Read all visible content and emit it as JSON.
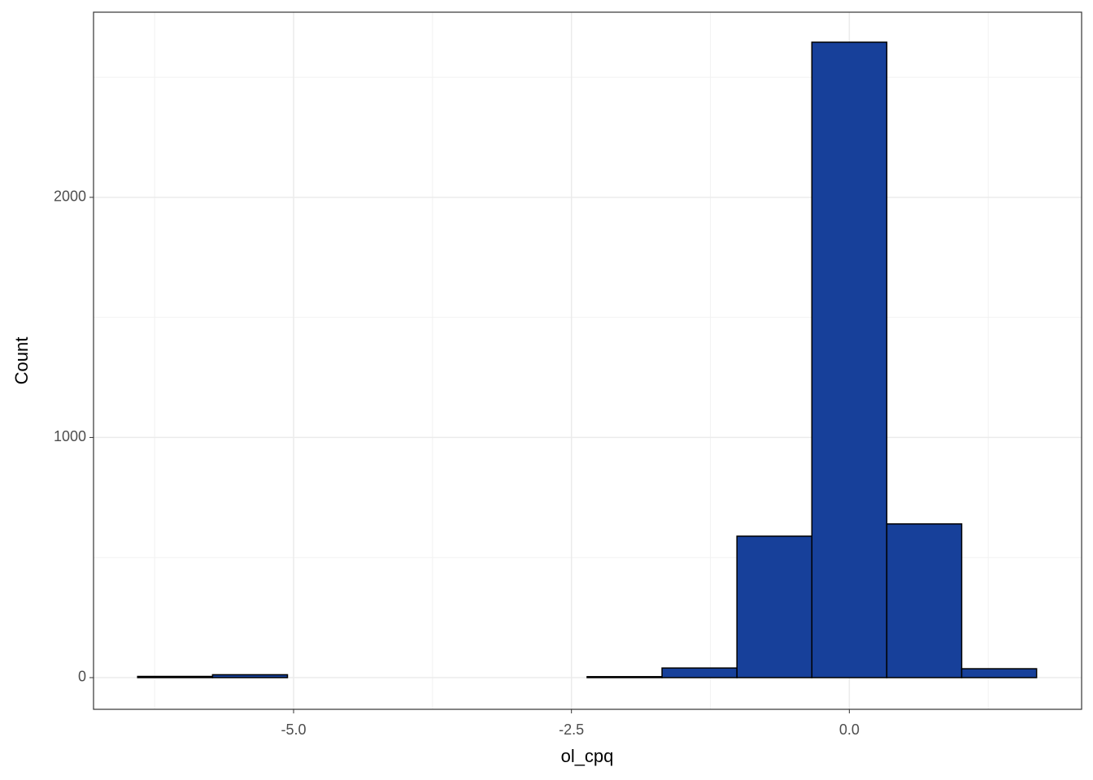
{
  "chart_data": {
    "type": "histogram",
    "x_label": "ol_cpq",
    "y_label": "Count",
    "bins": [
      -6.403,
      -5.729,
      -5.055,
      -4.381,
      -3.707,
      -3.033,
      -2.359,
      -1.685,
      -1.011,
      -0.337,
      0.337,
      1.011,
      1.685
    ],
    "values": [
      5,
      12,
      0,
      0,
      0,
      0,
      4,
      40,
      589,
      2646,
      640,
      37
    ],
    "color": "#17409a",
    "edge_color": "#000000",
    "xlim": [
      -6.8,
      2.09
    ],
    "ylim": [
      -132,
      2771
    ],
    "xticks": [
      {
        "value": -5,
        "label": "-5.0"
      },
      {
        "value": -2.5,
        "label": "-2.5"
      },
      {
        "value": 0,
        "label": "0.0"
      }
    ],
    "yticks": [
      0,
      1000,
      2000
    ],
    "grid": true
  }
}
